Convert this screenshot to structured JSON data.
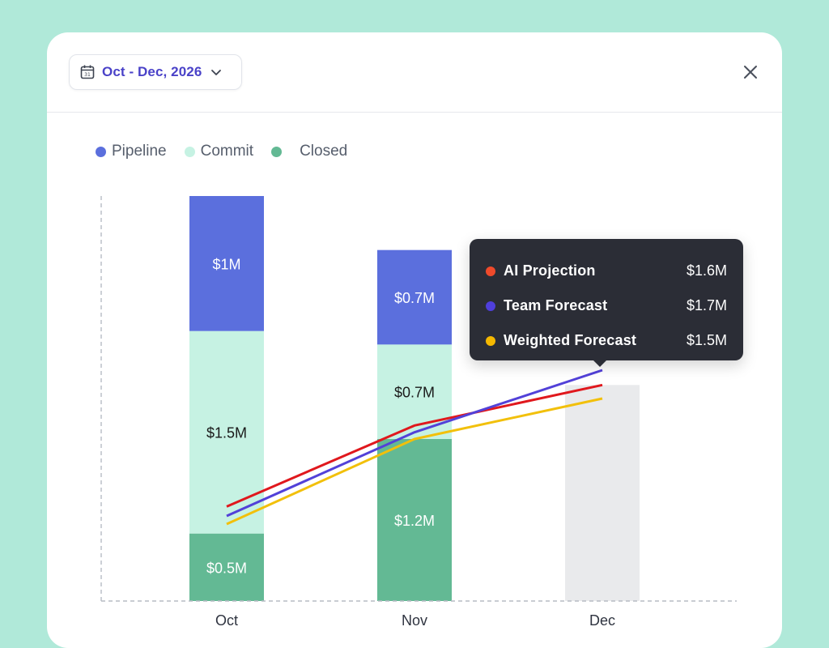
{
  "header": {
    "date_range": "Oct - Dec, 2026",
    "icons": {
      "calendar": "calendar-icon",
      "chevron": "chevron-down-icon",
      "close": "close-icon"
    }
  },
  "legend": [
    {
      "label": "Pipeline",
      "color": "#5b6fdd"
    },
    {
      "label": "Commit",
      "color": "#c6f2e3"
    },
    {
      "label": "Closed",
      "color": "#63b994"
    }
  ],
  "tooltip": {
    "rows": [
      {
        "name": "AI Projection",
        "value": "$1.6M",
        "color": "#ef4a2b"
      },
      {
        "name": "Team Forecast",
        "value": "$1.7M",
        "color": "#4f3fdc"
      },
      {
        "name": "Weighted Forecast",
        "value": "$1.5M",
        "color": "#f5b800"
      }
    ]
  },
  "chart_data": {
    "type": "bar",
    "stacked": true,
    "categories": [
      "Oct",
      "Nov",
      "Dec"
    ],
    "ylim": [
      0,
      3.0
    ],
    "series": [
      {
        "name": "Closed",
        "color": "#63b994",
        "values": [
          0.5,
          1.2,
          null
        ],
        "labels": [
          "$0.5M",
          "$1.2M",
          ""
        ],
        "label_color": "#ffffff"
      },
      {
        "name": "Commit",
        "color": "#c6f2e3",
        "values": [
          1.5,
          0.7,
          null
        ],
        "labels": [
          "$1.5M",
          "$0.7M",
          ""
        ],
        "label_color": "#1a1a1a"
      },
      {
        "name": "Pipeline",
        "color": "#5b6fdd",
        "values": [
          1.0,
          0.7,
          null
        ],
        "labels": [
          "$1M",
          "$0.7M",
          ""
        ],
        "label_color": "#ffffff"
      }
    ],
    "placeholder": {
      "category": "Dec",
      "value": 1.6,
      "color": "#e9eaec"
    },
    "lines": [
      {
        "name": "AI Projection",
        "color": "#e0181d",
        "values": [
          0.7,
          1.3,
          1.6
        ]
      },
      {
        "name": "Team Forecast",
        "color": "#5241d8",
        "values": [
          0.63,
          1.25,
          1.71
        ]
      },
      {
        "name": "Weighted Forecast",
        "color": "#f2c00b",
        "values": [
          0.57,
          1.2,
          1.5
        ]
      }
    ]
  }
}
